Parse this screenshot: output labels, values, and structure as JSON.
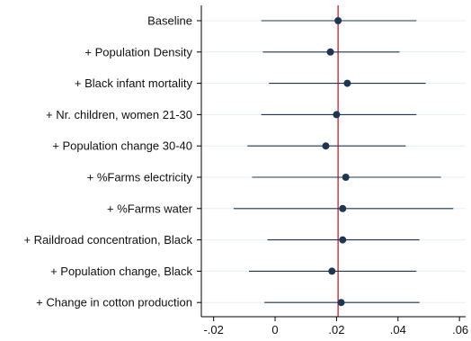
{
  "chart_data": {
    "type": "scatter",
    "subtype": "coefficient-plot",
    "title": "",
    "xlabel": "",
    "ylabel": "",
    "xlim": [
      -0.024,
      0.062
    ],
    "xticks": [
      -0.02,
      0,
      0.02,
      0.04,
      0.06
    ],
    "xtick_labels": [
      "-.02",
      "0",
      ".02",
      ".04",
      ".06"
    ],
    "reference_line": 0.0205,
    "grid": "horizontal",
    "colors": {
      "point": "#1f3552",
      "interval": "#1f3552",
      "reference_line": "#c0323a",
      "grid": "#e7eef4",
      "axis": "#000000"
    },
    "rows": [
      {
        "label": "Baseline",
        "estimate": 0.0205,
        "lower": -0.0045,
        "upper": 0.046
      },
      {
        "label": "+ Population Density",
        "estimate": 0.018,
        "lower": -0.004,
        "upper": 0.0405
      },
      {
        "label": "+ Black infant mortality",
        "estimate": 0.0235,
        "lower": -0.002,
        "upper": 0.049
      },
      {
        "label": "+ Nr. children, women 21-30",
        "estimate": 0.02,
        "lower": -0.0045,
        "upper": 0.046
      },
      {
        "label": "+ Population change 30-40",
        "estimate": 0.0165,
        "lower": -0.009,
        "upper": 0.0425
      },
      {
        "label": "+ %Farms electricity",
        "estimate": 0.023,
        "lower": -0.0075,
        "upper": 0.054
      },
      {
        "label": "+ %Farms water",
        "estimate": 0.022,
        "lower": -0.0135,
        "upper": 0.058
      },
      {
        "label": "+ Raildroad concentration, Black",
        "estimate": 0.022,
        "lower": -0.0025,
        "upper": 0.047
      },
      {
        "label": "+ Population change, Black",
        "estimate": 0.0185,
        "lower": -0.0085,
        "upper": 0.046
      },
      {
        "label": "+ Change in cotton production",
        "estimate": 0.0215,
        "lower": -0.0035,
        "upper": 0.047
      }
    ]
  }
}
